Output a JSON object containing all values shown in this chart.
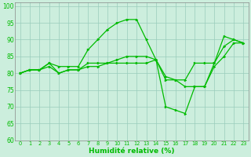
{
  "xlabel": "Humidité relative (%)",
  "background_color": "#cceedd",
  "grid_color": "#99ccbb",
  "line_color": "#00bb00",
  "xlim": [
    -0.5,
    23.5
  ],
  "ylim": [
    60,
    101
  ],
  "yticks": [
    60,
    65,
    70,
    75,
    80,
    85,
    90,
    95,
    100
  ],
  "xticks": [
    0,
    1,
    2,
    3,
    4,
    5,
    6,
    7,
    8,
    9,
    10,
    11,
    12,
    13,
    14,
    15,
    16,
    17,
    18,
    19,
    20,
    21,
    22,
    23
  ],
  "series": [
    [
      80,
      81,
      81,
      83,
      82,
      82,
      82,
      87,
      90,
      93,
      95,
      96,
      96,
      90,
      84,
      70,
      69,
      68,
      76,
      76,
      83,
      91,
      90,
      89
    ],
    [
      80,
      81,
      81,
      83,
      80,
      81,
      81,
      83,
      83,
      83,
      83,
      83,
      83,
      83,
      84,
      78,
      78,
      78,
      83,
      83,
      83,
      88,
      90,
      89
    ],
    [
      80,
      81,
      81,
      82,
      80,
      81,
      81,
      82,
      82,
      83,
      84,
      85,
      85,
      85,
      84,
      79,
      78,
      76,
      76,
      76,
      82,
      85,
      89,
      89
    ]
  ]
}
